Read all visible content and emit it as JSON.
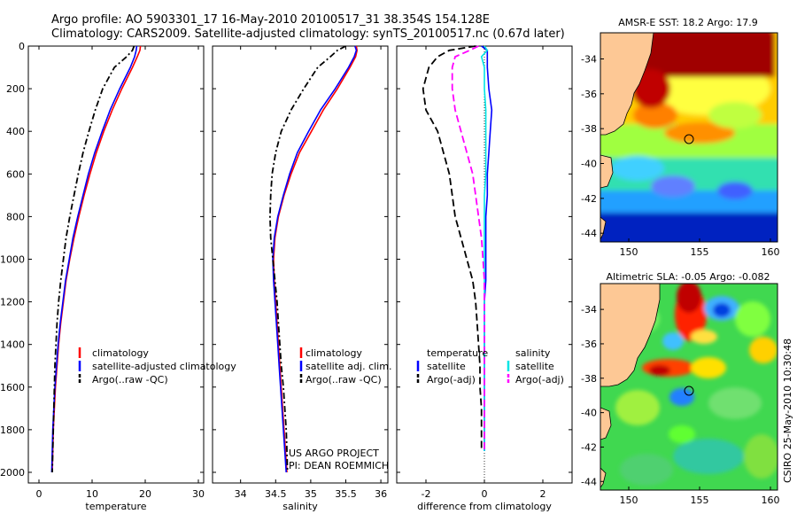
{
  "header": {
    "line1": "Argo profile: AO 5903301_17 16-May-2010 20100517_31 38.354S 154.128E",
    "line2": "Climatology: CARS2009. Satellite-adjusted climatology: synTS_20100517.nc (0.67d later)"
  },
  "colors": {
    "clim": "#ff0000",
    "sat": "#0000ff",
    "argo": "#000000",
    "sat_sal": "#00e5e5",
    "argo_sal": "#ff00ff"
  },
  "chart_data": [
    {
      "type": "line",
      "id": "temperature",
      "xlabel": "temperature",
      "ylabel": "",
      "xlim": [
        -2,
        31
      ],
      "ylim": [
        2050,
        0
      ],
      "xticks": [
        "0",
        "10",
        "20",
        "30"
      ],
      "xtick_values": [
        0,
        10,
        20,
        30
      ],
      "yticks": [
        "0",
        "200",
        "400",
        "600",
        "800",
        "1000",
        "1200",
        "1400",
        "1600",
        "1800",
        "2000"
      ],
      "ytick_values": [
        0,
        200,
        400,
        600,
        800,
        1000,
        1200,
        1400,
        1600,
        1800,
        2000
      ],
      "depth": [
        0,
        20,
        50,
        100,
        200,
        300,
        400,
        500,
        600,
        700,
        800,
        900,
        1000,
        1100,
        1200,
        1300,
        1400,
        1500,
        1600,
        1700,
        1800,
        1900,
        2000
      ],
      "series": [
        {
          "name": "climatology",
          "color": "#ff0000",
          "dash": "",
          "values": [
            19.1,
            19.0,
            18.5,
            17.6,
            15.6,
            13.8,
            12.2,
            10.8,
            9.6,
            8.5,
            7.5,
            6.6,
            5.8,
            5.1,
            4.6,
            4.1,
            3.7,
            3.4,
            3.1,
            2.9,
            2.7,
            2.6,
            2.5
          ]
        },
        {
          "name": "satellite-adjusted climatology",
          "color": "#0000ff",
          "dash": "",
          "values": [
            18.4,
            18.3,
            18.0,
            17.2,
            15.2,
            13.4,
            11.9,
            10.5,
            9.3,
            8.3,
            7.3,
            6.4,
            5.7,
            5.0,
            4.5,
            4.0,
            3.6,
            3.3,
            3.0,
            2.8,
            2.6,
            2.5,
            2.4
          ]
        },
        {
          "name": "Argo(..raw -QC)",
          "color": "#000000",
          "dash": "7 3 2 3",
          "values": [
            17.9,
            17.6,
            16.5,
            14.2,
            12.0,
            10.6,
            9.4,
            8.3,
            7.4,
            6.6,
            5.8,
            5.1,
            4.6,
            4.1,
            3.7,
            3.4,
            3.2,
            3.0,
            2.9,
            2.8,
            2.7,
            2.6,
            2.5
          ]
        }
      ],
      "legend": [
        "climatology",
        "satellite-adjusted climatology",
        "Argo(..raw -QC)"
      ],
      "legend_position": "lower-right"
    },
    {
      "type": "line",
      "id": "salinity",
      "xlabel": "salinity",
      "xlim": [
        33.6,
        36.1
      ],
      "ylim": [
        2050,
        0
      ],
      "xticks": [
        "34",
        "34.5",
        "35",
        "35.5",
        "36"
      ],
      "xtick_values": [
        34,
        34.5,
        35,
        35.5,
        36
      ],
      "depth": [
        0,
        20,
        50,
        100,
        200,
        300,
        400,
        500,
        600,
        700,
        800,
        900,
        1000,
        1100,
        1200,
        1300,
        1400,
        1500,
        1600,
        1700,
        1800,
        1900,
        2000
      ],
      "series": [
        {
          "name": "climatology",
          "color": "#ff0000",
          "dash": "",
          "values": [
            35.65,
            35.66,
            35.64,
            35.56,
            35.38,
            35.18,
            35.01,
            34.84,
            34.72,
            34.62,
            34.54,
            34.49,
            34.47,
            34.48,
            34.5,
            34.52,
            34.54,
            34.56,
            34.58,
            34.6,
            34.62,
            34.64,
            34.66
          ]
        },
        {
          "name": "satellite adj. clim.",
          "color": "#0000ff",
          "dash": "",
          "values": [
            35.63,
            35.65,
            35.62,
            35.54,
            35.35,
            35.14,
            34.97,
            34.81,
            34.7,
            34.61,
            34.53,
            34.48,
            34.46,
            34.47,
            34.49,
            34.51,
            34.53,
            34.55,
            34.57,
            34.59,
            34.61,
            34.63,
            34.65
          ]
        },
        {
          "name": "Argo(..raw -QC)",
          "color": "#000000",
          "dash": "7 3 2 3",
          "values": [
            35.5,
            35.38,
            35.28,
            35.1,
            34.9,
            34.72,
            34.58,
            34.5,
            34.45,
            34.43,
            34.42,
            34.43,
            34.46,
            34.49,
            34.52,
            34.54,
            34.56,
            34.58,
            34.61,
            34.63,
            34.65,
            34.66,
            34.67
          ]
        }
      ],
      "legend": [
        "climatology",
        "satellite adj. clim.",
        "Argo(..raw -QC)"
      ],
      "legend_position": "lower-right",
      "annotations": [
        "US ARGO PROJECT",
        "PI: DEAN ROEMMICH"
      ]
    },
    {
      "type": "line",
      "id": "difference",
      "xlabel": "difference from climatology",
      "xlim": [
        -3,
        3
      ],
      "ylim": [
        2050,
        0
      ],
      "xticks": [
        "-2",
        "0",
        "2"
      ],
      "xtick_values": [
        -2,
        0,
        2
      ],
      "depth": [
        0,
        20,
        50,
        100,
        200,
        300,
        400,
        500,
        600,
        700,
        800,
        900,
        1000,
        1100,
        1200,
        1300,
        1400,
        1500,
        1600,
        1700,
        1800,
        1900
      ],
      "series": [
        {
          "name": "temperature satellite",
          "color": "#0000ff",
          "dash": "",
          "values": [
            -0.1,
            0.1,
            0.1,
            0.1,
            0.15,
            0.25,
            0.2,
            0.15,
            0.1,
            0.1,
            0.05,
            0.05,
            0.05,
            0.05,
            0.0,
            0.0,
            0.0,
            0.0,
            0.0,
            0.0,
            0.0,
            0.0
          ]
        },
        {
          "name": "temperature Argo(-adj)",
          "color": "#000000",
          "dash": "8 4",
          "values": [
            -0.3,
            -1.2,
            -1.6,
            -1.9,
            -2.1,
            -2.0,
            -1.6,
            -1.4,
            -1.2,
            -1.1,
            -1.0,
            -0.8,
            -0.6,
            -0.4,
            -0.3,
            -0.25,
            -0.2,
            -0.15,
            -0.15,
            -0.1,
            -0.1,
            -0.1
          ]
        },
        {
          "name": "salinity satellite",
          "color": "#00e5e5",
          "dash": "",
          "values": [
            0.0,
            0.1,
            -0.1,
            0.0,
            0.0,
            0.05,
            0.05,
            0.05,
            0.05,
            0.0,
            0.0,
            0.0,
            0.0,
            0.0,
            0.0,
            0.0,
            0.0,
            0.0,
            0.0,
            0.0,
            0.0,
            0.0
          ]
        },
        {
          "name": "salinity Argo(-adj)",
          "color": "#ff00ff",
          "dash": "8 4",
          "values": [
            -0.2,
            -0.5,
            -1.0,
            -1.1,
            -1.1,
            -1.0,
            -0.8,
            -0.6,
            -0.4,
            -0.3,
            -0.2,
            -0.1,
            -0.05,
            0.0,
            0.0,
            0.0,
            0.0,
            0.0,
            0.0,
            0.0,
            0.0,
            0.0
          ]
        }
      ],
      "legend_left_title": "temperature",
      "legend_left": [
        "satellite",
        "Argo(-adj)"
      ],
      "legend_right_title": "salinity",
      "legend_right": [
        "satellite",
        "Argo(-adj)"
      ]
    },
    {
      "type": "heatmap",
      "id": "sst-map",
      "title": "AMSR-E SST: 18.2 Argo: 17.9",
      "xlim": [
        148,
        160.5
      ],
      "ylim": [
        -44.5,
        -32.5
      ],
      "xticks": [
        "150",
        "155",
        "160"
      ],
      "xtick_values": [
        150,
        155,
        160
      ],
      "yticks": [
        "-34",
        "-36",
        "-38",
        "-40",
        "-42",
        "-44"
      ],
      "ytick_values": [
        -34,
        -36,
        -38,
        -40,
        -42,
        -44
      ],
      "float_position": [
        154.128,
        -38.354
      ]
    },
    {
      "type": "heatmap",
      "id": "sla-map",
      "title": "Altimetric SLA: -0.05 Argo: -0.082",
      "xlim": [
        148,
        160.5
      ],
      "ylim": [
        -44.5,
        -32.5
      ],
      "xticks": [
        "150",
        "155",
        "160"
      ],
      "xtick_values": [
        150,
        155,
        160
      ],
      "yticks": [
        "-34",
        "-36",
        "-38",
        "-40",
        "-42",
        "-44"
      ],
      "ytick_values": [
        -34,
        -36,
        -38,
        -40,
        -42,
        -44
      ],
      "float_position": [
        154.128,
        -38.354
      ]
    }
  ],
  "credit": "CSIRO 25-May-2010 10:30:48"
}
